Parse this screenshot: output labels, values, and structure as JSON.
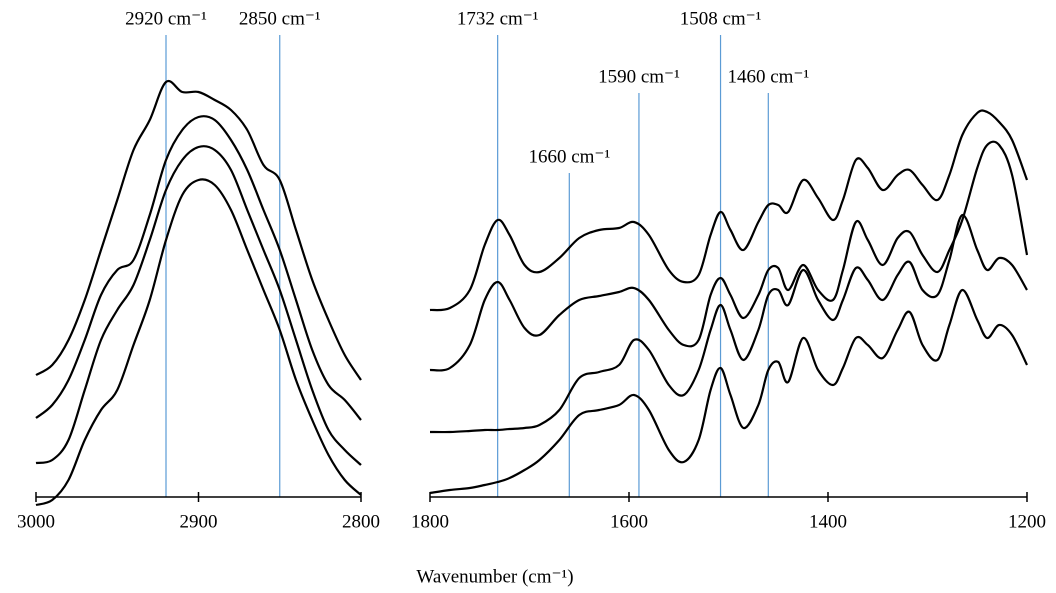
{
  "chart_data": [
    {
      "type": "line",
      "x": [
        3000,
        2990,
        2980,
        2970,
        2960,
        2950,
        2940,
        2930,
        2920,
        2910,
        2900,
        2890,
        2880,
        2870,
        2860,
        2850,
        2840,
        2830,
        2820,
        2810,
        2800
      ],
      "xlim": [
        3000,
        2800
      ],
      "xticks": [
        3000,
        2900,
        2800
      ],
      "ylim": [
        0,
        440
      ],
      "xlabel": "Wavenumber (cm⁻¹)",
      "series": [
        {
          "color": "#000000",
          "values": [
            122,
            132,
            157,
            197,
            247,
            297,
            347,
            377,
            415,
            405,
            405,
            397,
            387,
            367,
            332,
            317,
            267,
            217,
            177,
            142,
            117
          ]
        },
        {
          "color": "#000000",
          "values": [
            79,
            92,
            117,
            157,
            202,
            227,
            237,
            282,
            337,
            367,
            380,
            377,
            357,
            327,
            287,
            247,
            197,
            147,
            112,
            97,
            77
          ]
        },
        {
          "color": "#000000",
          "values": [
            34,
            37,
            57,
            107,
            157,
            187,
            212,
            257,
            307,
            337,
            350,
            347,
            327,
            287,
            247,
            207,
            157,
            107,
            67,
            47,
            32
          ]
        },
        {
          "color": "#000000",
          "values": [
            -8,
            -3,
            17,
            57,
            87,
            107,
            152,
            197,
            257,
            302,
            317,
            312,
            287,
            247,
            207,
            167,
            117,
            77,
            42,
            17,
            2
          ]
        }
      ],
      "annotation_color": "#5b9bd5",
      "annotations": [
        {
          "x": 2920,
          "label": "2920 cm⁻¹"
        },
        {
          "x": 2850,
          "label": "2850 cm⁻¹"
        }
      ]
    },
    {
      "type": "line",
      "x": [
        1800,
        1780,
        1760,
        1745,
        1732,
        1720,
        1705,
        1690,
        1670,
        1650,
        1630,
        1610,
        1595,
        1580,
        1560,
        1545,
        1530,
        1518,
        1508,
        1498,
        1485,
        1470,
        1460,
        1450,
        1440,
        1425,
        1410,
        1395,
        1385,
        1372,
        1360,
        1345,
        1330,
        1318,
        1305,
        1290,
        1278,
        1265,
        1250,
        1240,
        1228,
        1215,
        1200
      ],
      "xlim": [
        1800,
        1200
      ],
      "xticks": [
        1800,
        1600,
        1400,
        1200
      ],
      "ylim": [
        0,
        440
      ],
      "series": [
        {
          "color": "#000000",
          "values": [
            187,
            189,
            207,
            252,
            277,
            262,
            232,
            225,
            239,
            259,
            267,
            269,
            275,
            262,
            227,
            215,
            222,
            262,
            285,
            267,
            247,
            275,
            292,
            292,
            285,
            317,
            299,
            277,
            297,
            337,
            329,
            307,
            322,
            327,
            312,
            297,
            322,
            362,
            384,
            385,
            375,
            357,
            317
          ]
        },
        {
          "color": "#000000",
          "values": [
            127,
            129,
            152,
            197,
            215,
            197,
            169,
            162,
            182,
            197,
            201,
            205,
            209,
            197,
            167,
            152,
            157,
            202,
            219,
            202,
            179,
            202,
            227,
            229,
            207,
            232,
            207,
            197,
            227,
            275,
            257,
            232,
            259,
            265,
            242,
            225,
            247,
            277,
            329,
            352,
            352,
            322,
            242
          ]
        },
        {
          "color": "#000000",
          "values": [
            65,
            65,
            66,
            67,
            67,
            68,
            69,
            72,
            87,
            119,
            125,
            132,
            157,
            147,
            112,
            102,
            127,
            167,
            192,
            167,
            137,
            167,
            202,
            207,
            192,
            227,
            197,
            177,
            197,
            229,
            217,
            197,
            222,
            235,
            207,
            202,
            237,
            282,
            247,
            227,
            239,
            232,
            207
          ]
        },
        {
          "color": "#000000",
          "values": [
            4,
            7,
            9,
            12,
            15,
            19,
            27,
            37,
            57,
            82,
            87,
            92,
            102,
            87,
            47,
            35,
            57,
            107,
            129,
            102,
            69,
            92,
            127,
            135,
            115,
            159,
            127,
            112,
            129,
            159,
            152,
            139,
            167,
            185,
            152,
            137,
            172,
            207,
            177,
            159,
            172,
            162,
            132
          ]
        }
      ],
      "annotation_color": "#5b9bd5",
      "annotations": [
        {
          "x": 1732,
          "label": "1732 cm⁻¹"
        },
        {
          "x": 1660,
          "label": "1660 cm⁻¹"
        },
        {
          "x": 1590,
          "label": "1590 cm⁻¹"
        },
        {
          "x": 1508,
          "label": "1508 cm⁻¹"
        },
        {
          "x": 1460,
          "label": "1460 cm⁻¹"
        }
      ]
    }
  ]
}
